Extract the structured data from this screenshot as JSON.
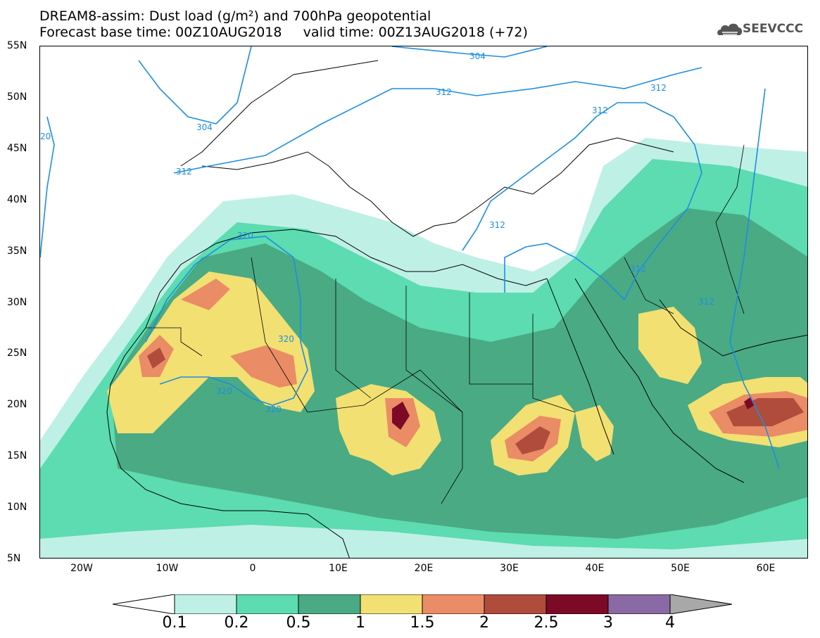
{
  "title": {
    "line1": "DREAM8-assim: Dust load (g/m²) and 700hPa geopotential",
    "line2": "Forecast base time: 00Z10AUG2018     valid time: 00Z13AUG2018 (+72)"
  },
  "logo": {
    "text": "SEEVCCC",
    "icon": "cloud-icon"
  },
  "axes": {
    "y_labels": [
      "55N",
      "50N",
      "45N",
      "40N",
      "35N",
      "30N",
      "25N",
      "20N",
      "15N",
      "10N",
      "5N"
    ],
    "x_labels": [
      "20W",
      "10W",
      "0",
      "10E",
      "20E",
      "30E",
      "40E",
      "50E",
      "60E"
    ]
  },
  "contours": {
    "labels": [
      "304",
      "304",
      "312",
      "312",
      "312",
      "312",
      "312",
      "312",
      "312",
      "320",
      "320",
      "320",
      "320",
      "20"
    ]
  },
  "colorbar": {
    "ticks": [
      "0.1",
      "0.2",
      "0.5",
      "1",
      "1.5",
      "2",
      "2.5",
      "3",
      "4"
    ],
    "colors": [
      "#bff0e6",
      "#5cdcb0",
      "#4aaa84",
      "#f2e072",
      "#ea8c66",
      "#b04c3c",
      "#7c0a26",
      "#8a6aa4"
    ],
    "under_color": "#ffffff",
    "over_color": "#a8a8a8"
  },
  "palette": {
    "land_outline": "#000000",
    "geopotential_line": "#1e8ee0",
    "background": "#ffffff"
  }
}
